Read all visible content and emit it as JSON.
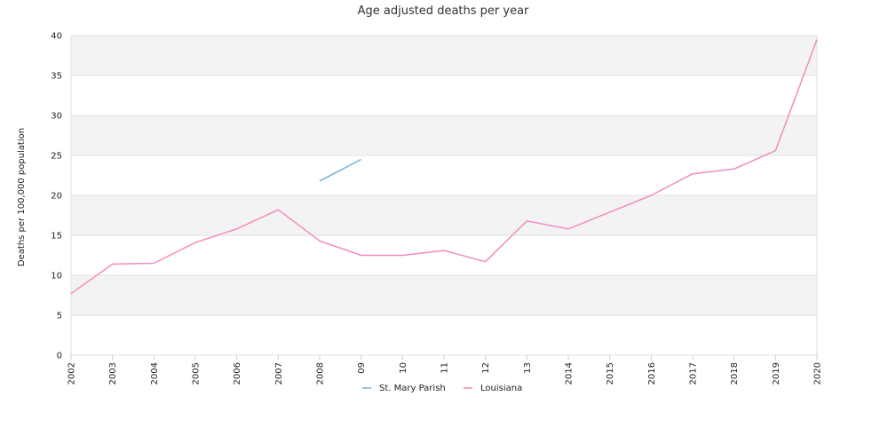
{
  "chart_data": {
    "type": "line",
    "title": "Age adjusted deaths per year",
    "xlabel": "",
    "ylabel": "Deaths per 100,000 population",
    "ylim": [
      0,
      40
    ],
    "yticks": [
      "0",
      "5",
      "10",
      "15",
      "20",
      "25",
      "30",
      "35",
      "40"
    ],
    "categories": [
      "2002",
      "2003",
      "2004",
      "2005",
      "2006",
      "2007",
      "2008",
      "09",
      "10",
      "11",
      "12",
      "13",
      "2014",
      "2015",
      "2016",
      "2017",
      "2018",
      "2019",
      "2020"
    ],
    "grid": "horizontal bands",
    "legend": "bottom-center",
    "series": [
      {
        "name": "St. Mary Parish",
        "color": "#6cb4e4",
        "values": [
          null,
          null,
          null,
          null,
          null,
          null,
          21.8,
          24.5,
          null,
          null,
          null,
          null,
          null,
          null,
          null,
          null,
          null,
          null,
          null
        ]
      },
      {
        "name": "Louisiana",
        "color": "#f28cc0",
        "values": [
          7.7,
          11.4,
          11.5,
          14.1,
          15.8,
          18.2,
          14.3,
          12.5,
          12.5,
          13.1,
          11.7,
          16.8,
          15.8,
          17.9,
          20.0,
          22.7,
          23.3,
          25.6,
          39.5
        ]
      }
    ]
  }
}
